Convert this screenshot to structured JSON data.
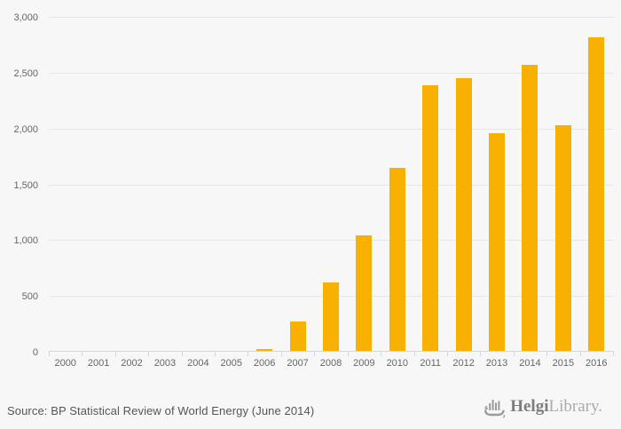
{
  "chart_data": {
    "type": "bar",
    "title": "",
    "xlabel": "",
    "ylabel": "",
    "categories": [
      "2000",
      "2001",
      "2002",
      "2003",
      "2004",
      "2005",
      "2006",
      "2007",
      "2008",
      "2009",
      "2010",
      "2011",
      "2012",
      "2013",
      "2014",
      "2015",
      "2016"
    ],
    "values": [
      0,
      0,
      0,
      0,
      0,
      0,
      25,
      270,
      620,
      1040,
      1650,
      2385,
      2455,
      1960,
      2570,
      2030,
      2815
    ],
    "ylim": [
      0,
      3000
    ],
    "yticks": [
      0,
      500,
      1000,
      1500,
      2000,
      2500,
      3000
    ],
    "grid": true,
    "legend": "none",
    "bar_color": "#f9b101"
  },
  "colors": {
    "background": "#f7f7f7",
    "gridline": "#e6e6e6",
    "axis_line": "#ccd6eb",
    "axis_label": "#666666",
    "source_text": "#555555",
    "bar": "#f9b101",
    "logo_dark": "#7d7d7d",
    "logo_light": "#ababab"
  },
  "footer": {
    "source": "Source: BP Statistical Review of World Energy (June 2014)",
    "logo_icon": "viking-ship-icon",
    "logo_primary": "Helgi",
    "logo_secondary": "Library."
  }
}
